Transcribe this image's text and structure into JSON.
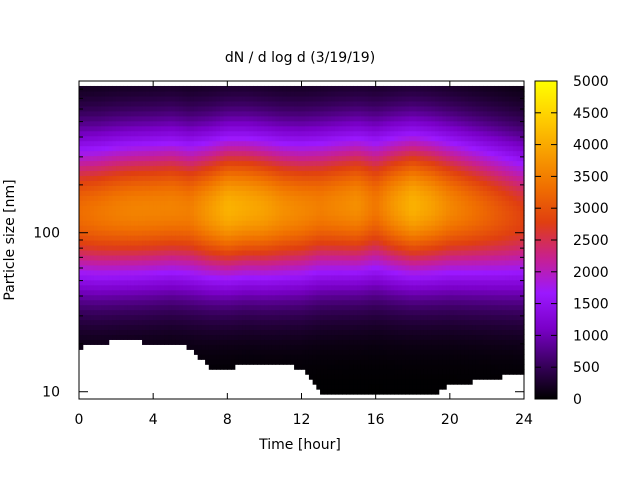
{
  "chart_data": {
    "type": "heatmap",
    "title": "dN / d log d (3/19/19)",
    "xlabel": "Time [hour]",
    "ylabel": "Particle size [nm]",
    "xlim": [
      0,
      24
    ],
    "ylim": [
      9,
      900
    ],
    "yscale": "log",
    "x_ticks": [
      "0",
      "4",
      "8",
      "12",
      "16",
      "20",
      "24"
    ],
    "y_ticks": [
      "10",
      "100"
    ],
    "colorbar": {
      "min": 0,
      "max": 5000,
      "ticks": [
        "0",
        "500",
        "1000",
        "1500",
        "2000",
        "2500",
        "3000",
        "3500",
        "4000",
        "4500",
        "5000"
      ],
      "colormap": [
        "#000000",
        "#3a0060",
        "#7a00c8",
        "#9b18ff",
        "#c8208f",
        "#e03f10",
        "#f07000",
        "#f8a000",
        "#ffd000",
        "#ffff00"
      ]
    },
    "peak_diameter_nm": [
      135,
      135,
      138,
      140,
      142,
      145,
      140,
      140,
      143,
      145,
      142,
      140,
      140,
      145,
      148,
      150,
      150,
      150,
      150,
      148,
      145,
      140,
      135,
      130,
      125
    ],
    "peak_intensity": [
      3300,
      3400,
      3500,
      3550,
      3550,
      3550,
      3500,
      3800,
      4100,
      4000,
      3900,
      3700,
      3600,
      3500,
      3600,
      3700,
      3400,
      3800,
      4100,
      3900,
      3600,
      3400,
      3200,
      3000,
      2800
    ],
    "upper_size_limit_nm": [
      850,
      830,
      840,
      840,
      840,
      840,
      840,
      840,
      840,
      840,
      840,
      850,
      850,
      850,
      850,
      850,
      850,
      850,
      850,
      850,
      850,
      850,
      850,
      850,
      850
    ],
    "lower_size_limit_nm": [
      19,
      20,
      21,
      21,
      20,
      20,
      19,
      14,
      14,
      15,
      15,
      15,
      14,
      10,
      9.5,
      9.5,
      9.5,
      9.5,
      9.5,
      9.5,
      11,
      11.5,
      12,
      12.5,
      13
    ]
  }
}
